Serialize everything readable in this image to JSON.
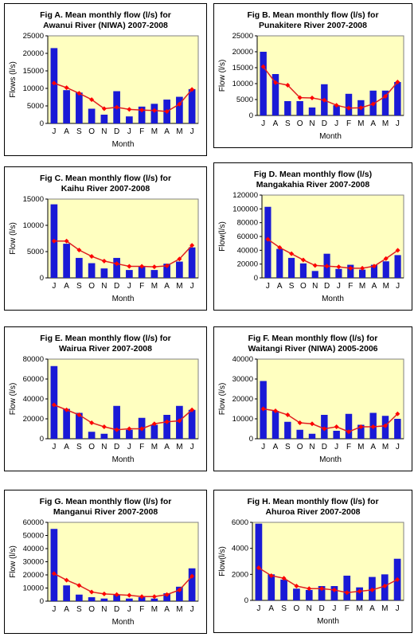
{
  "chart_data": [
    {
      "id": "A",
      "type": "bar",
      "title_line1": "Fig A. Mean monthly flow (l/s) for",
      "title_line2": "Awanui River (NIWA) 2007-2008",
      "ylabel": "Flows (l/s)",
      "xlabel": "Month",
      "ylim": [
        0,
        25000
      ],
      "yticks": [
        0,
        5000,
        10000,
        15000,
        20000,
        25000
      ],
      "categories": [
        "J",
        "A",
        "S",
        "O",
        "N",
        "D",
        "J",
        "F",
        "M",
        "A",
        "M",
        "J"
      ],
      "series": [
        {
          "type": "bar",
          "values": [
            21500,
            9500,
            8800,
            4200,
            2500,
            9200,
            2000,
            4800,
            5600,
            6800,
            7600,
            9800
          ]
        },
        {
          "type": "line",
          "values": [
            11500,
            10200,
            8600,
            6800,
            4200,
            4600,
            4000,
            3800,
            3700,
            3400,
            5500,
            9700
          ]
        }
      ]
    },
    {
      "id": "B",
      "type": "bar",
      "title_line1": "Fig B. Mean monthly flow (l/s) for",
      "title_line2": "Punakitere River 2007-2008",
      "ylabel": "Flow (l/s)",
      "xlabel": "Month",
      "ylim": [
        0,
        25000
      ],
      "yticks": [
        0,
        5000,
        10000,
        15000,
        20000,
        25000
      ],
      "categories": [
        "J",
        "A",
        "S",
        "O",
        "N",
        "D",
        "J",
        "F",
        "M",
        "A",
        "M",
        "J"
      ],
      "series": [
        {
          "type": "bar",
          "values": [
            20000,
            13000,
            4500,
            4500,
            2500,
            9800,
            3200,
            6800,
            4800,
            7800,
            7800,
            10500
          ]
        },
        {
          "type": "line",
          "values": [
            15300,
            10300,
            9500,
            5600,
            5500,
            4800,
            3200,
            2300,
            2400,
            3600,
            6000,
            10500
          ]
        }
      ]
    },
    {
      "id": "C",
      "type": "bar",
      "title_line1": "Fig C. Mean monthly flow (l/s) for",
      "title_line2": "Kaihu River 2007-2008",
      "ylabel": "Flow (l/s)",
      "xlabel": "Month",
      "ylim": [
        0,
        15000
      ],
      "yticks": [
        0,
        5000,
        10000,
        15000
      ],
      "categories": [
        "J",
        "A",
        "S",
        "O",
        "N",
        "D",
        "J",
        "F",
        "M",
        "A",
        "M",
        "J"
      ],
      "series": [
        {
          "type": "bar",
          "values": [
            14000,
            6500,
            3800,
            2800,
            1800,
            3800,
            1500,
            2200,
            1500,
            2700,
            3100,
            5800
          ]
        },
        {
          "type": "line",
          "values": [
            7000,
            7000,
            5300,
            4100,
            3200,
            2700,
            2200,
            2200,
            2100,
            2300,
            3600,
            6200
          ]
        }
      ]
    },
    {
      "id": "D",
      "type": "bar",
      "title_line1": "Fig D. Mean monthly flow (l/s)",
      "title_line2": "Mangakahia River 2007-2008",
      "ylabel": "Flow(l/s)",
      "xlabel": "Month",
      "ylim": [
        0,
        120000
      ],
      "yticks": [
        0,
        20000,
        40000,
        60000,
        80000,
        100000,
        120000
      ],
      "categories": [
        "J",
        "A",
        "S",
        "O",
        "N",
        "D",
        "J",
        "F",
        "M",
        "A",
        "M",
        "J"
      ],
      "series": [
        {
          "type": "bar",
          "values": [
            103000,
            42000,
            29000,
            21000,
            10000,
            35000,
            13000,
            19000,
            12000,
            19000,
            24000,
            33000
          ]
        },
        {
          "type": "line",
          "values": [
            56000,
            44000,
            35000,
            26000,
            18000,
            17000,
            16000,
            14000,
            14000,
            17000,
            28000,
            40000
          ]
        }
      ]
    },
    {
      "id": "E",
      "type": "bar",
      "title_line1": "Fig E. Mean monthly flow (l/s) for",
      "title_line2": "Wairua River 2007-2008",
      "ylabel": "Flow (l/s)",
      "xlabel": "Month",
      "ylim": [
        0,
        80000
      ],
      "yticks": [
        0,
        20000,
        40000,
        60000,
        80000
      ],
      "categories": [
        "J",
        "A",
        "S",
        "O",
        "N",
        "D",
        "J",
        "F",
        "M",
        "A",
        "M",
        "J"
      ],
      "series": [
        {
          "type": "bar",
          "values": [
            73000,
            30000,
            26000,
            7000,
            5000,
            33000,
            9000,
            21000,
            14000,
            24000,
            33000,
            29000
          ]
        },
        {
          "type": "line",
          "values": [
            34000,
            29000,
            24000,
            16000,
            12000,
            9000,
            10000,
            10000,
            15000,
            17000,
            18000,
            29000
          ]
        }
      ]
    },
    {
      "id": "F",
      "type": "bar",
      "title_line1": "Fig F. Mean monthly flow (l/s) for",
      "title_line2": "Waitangi River (NIWA) 2005-2006",
      "ylabel": "Flow (l/s)",
      "xlabel": "Month",
      "ylim": [
        0,
        40000
      ],
      "yticks": [
        0,
        10000,
        20000,
        30000,
        40000
      ],
      "categories": [
        "J",
        "A",
        "S",
        "O",
        "N",
        "D",
        "J",
        "F",
        "M",
        "A",
        "M",
        "J"
      ],
      "series": [
        {
          "type": "bar",
          "values": [
            29000,
            14000,
            8500,
            4500,
            2500,
            12000,
            4000,
            12500,
            7000,
            13000,
            11500,
            10000
          ]
        },
        {
          "type": "line",
          "values": [
            15000,
            14000,
            12000,
            8000,
            7500,
            5000,
            6000,
            3500,
            6000,
            6000,
            6500,
            12500
          ]
        }
      ]
    },
    {
      "id": "G",
      "type": "bar",
      "title_line1": "Fig G. Mean monthly flow (l/s) for",
      "title_line2": "Manganui River 2007-2008",
      "ylabel": "Flow (l/s)",
      "xlabel": "Month",
      "ylim": [
        0,
        60000
      ],
      "yticks": [
        0,
        10000,
        20000,
        30000,
        40000,
        50000,
        60000
      ],
      "categories": [
        "J",
        "A",
        "S",
        "O",
        "N",
        "D",
        "J",
        "F",
        "M",
        "A",
        "M",
        "J"
      ],
      "series": [
        {
          "type": "bar",
          "values": [
            55000,
            12000,
            5000,
            3000,
            2000,
            5000,
            2000,
            3000,
            2000,
            6000,
            11000,
            25000
          ]
        },
        {
          "type": "line",
          "values": [
            21000,
            16000,
            12000,
            7000,
            5500,
            5000,
            4500,
            3500,
            3500,
            5000,
            8500,
            19000
          ]
        }
      ]
    },
    {
      "id": "H",
      "type": "bar",
      "title_line1": "Fig H. Mean monthly flow (l/s) for",
      "title_line2": "Ahuroa River 2007-2008",
      "ylabel": "Flow(l/s)",
      "xlabel": "Month",
      "ylim": [
        0,
        6000
      ],
      "yticks": [
        0,
        2000,
        4000,
        6000
      ],
      "categories": [
        "J",
        "A",
        "S",
        "O",
        "N",
        "D",
        "J",
        "F",
        "M",
        "A",
        "M",
        "J"
      ],
      "series": [
        {
          "type": "bar",
          "values": [
            5900,
            2000,
            1600,
            900,
            800,
            1100,
            1100,
            1900,
            1000,
            1800,
            2000,
            3200
          ]
        },
        {
          "type": "line",
          "values": [
            2500,
            1900,
            1700,
            1100,
            900,
            900,
            800,
            600,
            700,
            800,
            1100,
            1600
          ]
        }
      ]
    }
  ],
  "colors": {
    "plot_background": "#ffffc0",
    "bar_fill": "#1a1ad6",
    "line": "#e02020",
    "marker": "#ff0000"
  }
}
